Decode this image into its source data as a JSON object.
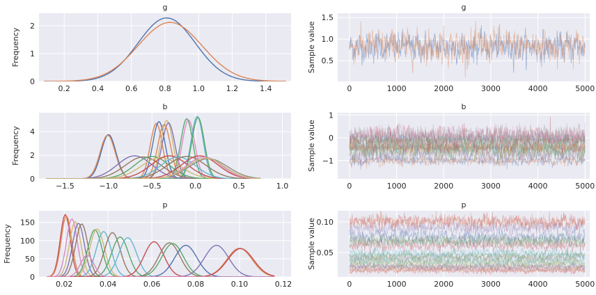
{
  "chart_data": [
    {
      "type": "line",
      "title": "g",
      "ylabel": "Frequency",
      "xlabel": "",
      "xlim": [
        0.05,
        1.55
      ],
      "ylim": [
        0,
        2.45
      ],
      "xticks": [
        0.2,
        0.4,
        0.6,
        0.8,
        1.0,
        1.2,
        1.4
      ],
      "xtick_labels": [
        "0.2",
        "0.4",
        "0.6",
        "0.8",
        "1.0",
        "1.2",
        "1.4"
      ],
      "yticks": [
        0,
        1,
        2
      ],
      "ytick_labels": [
        "0",
        "1",
        "2"
      ],
      "grid": true,
      "series": [
        {
          "mu": 0.81,
          "sigma": 0.17,
          "peak": 2.28,
          "range": [
            0.08,
            1.52
          ],
          "color": "#4c72b0"
        },
        {
          "mu": 0.83,
          "sigma": 0.19,
          "peak": 2.12,
          "range": [
            0.08,
            1.52
          ],
          "color": "#dd8452"
        }
      ]
    },
    {
      "type": "line",
      "title": "g",
      "ylabel": "Sample value",
      "xlabel": "",
      "xlim": [
        -250,
        5100
      ],
      "ylim": [
        0.02,
        1.6
      ],
      "xticks": [
        0,
        1000,
        2000,
        3000,
        4000,
        5000
      ],
      "xtick_labels": [
        "0",
        "1000",
        "2000",
        "3000",
        "4000",
        "5000"
      ],
      "yticks": [
        0.5,
        1.0,
        1.5
      ],
      "ytick_labels": [
        "0.5",
        "1.0",
        "1.5"
      ],
      "grid": true,
      "trace_range": [
        0,
        5000
      ],
      "series": [
        {
          "mean": 0.82,
          "sd": 0.17,
          "color": "#4c72b0",
          "opacity": 0.45
        },
        {
          "mean": 0.84,
          "sd": 0.19,
          "color": "#dd8452",
          "opacity": 0.45
        }
      ]
    },
    {
      "type": "line",
      "title": "b",
      "ylabel": "Frequency",
      "xlabel": "",
      "xlim": [
        -1.8,
        1.1
      ],
      "ylim": [
        0,
        5.6
      ],
      "xticks": [
        -1.5,
        -1.0,
        -0.5,
        0.0,
        0.5,
        1.0
      ],
      "xtick_labels": [
        "−1.5",
        "−1.0",
        "−0.5",
        "0.0",
        "0.5",
        "1.0"
      ],
      "yticks": [
        0,
        2,
        4
      ],
      "ytick_labels": [
        "0",
        "2",
        "4"
      ],
      "grid": true,
      "series": [
        {
          "mu": -1.0,
          "sigma": 0.085,
          "peak": 3.75,
          "range": [
            -1.72,
            0.75
          ],
          "color": "#4c72b0"
        },
        {
          "mu": -1.01,
          "sigma": 0.087,
          "peak": 3.7,
          "range": [
            -1.72,
            0.75
          ],
          "color": "#dd8452"
        },
        {
          "mu": -0.45,
          "sigma": 0.07,
          "peak": 4.7,
          "range": [
            -1.72,
            0.75
          ],
          "color": "#dd8452"
        },
        {
          "mu": -0.42,
          "sigma": 0.072,
          "peak": 4.85,
          "range": [
            -1.72,
            0.75
          ],
          "color": "#4c72b0"
        },
        {
          "mu": -0.33,
          "sigma": 0.072,
          "peak": 4.95,
          "range": [
            -1.72,
            0.75
          ],
          "color": "#ccb974"
        },
        {
          "mu": -0.31,
          "sigma": 0.075,
          "peak": 4.75,
          "range": [
            -1.72,
            0.75
          ],
          "color": "#8172b3"
        },
        {
          "mu": -0.36,
          "sigma": 0.074,
          "peak": 4.6,
          "range": [
            -1.72,
            0.75
          ],
          "color": "#dd8452"
        },
        {
          "mu": -0.1,
          "sigma": 0.07,
          "peak": 5.1,
          "range": [
            -1.72,
            0.75
          ],
          "color": "#55a868"
        },
        {
          "mu": -0.08,
          "sigma": 0.072,
          "peak": 5.0,
          "range": [
            -1.72,
            0.75
          ],
          "color": "#da8bc3"
        },
        {
          "mu": 0.02,
          "sigma": 0.07,
          "peak": 5.3,
          "range": [
            -1.72,
            0.75
          ],
          "color": "#64b5cd"
        },
        {
          "mu": 0.03,
          "sigma": 0.072,
          "peak": 5.2,
          "range": [
            -1.72,
            0.75
          ],
          "color": "#55a868"
        },
        {
          "mu": -0.7,
          "sigma": 0.2,
          "peak": 1.95,
          "range": [
            -1.72,
            0.75
          ],
          "color": "#8172b3"
        },
        {
          "mu": -0.6,
          "sigma": 0.21,
          "peak": 1.85,
          "range": [
            -1.72,
            0.75
          ],
          "color": "#937860"
        },
        {
          "mu": -0.5,
          "sigma": 0.2,
          "peak": 1.9,
          "range": [
            -1.72,
            0.75
          ],
          "color": "#55a868"
        },
        {
          "mu": -0.4,
          "sigma": 0.22,
          "peak": 1.8,
          "range": [
            -1.72,
            0.75
          ],
          "color": "#ccb974"
        },
        {
          "mu": -0.3,
          "sigma": 0.21,
          "peak": 1.95,
          "range": [
            -1.72,
            0.75
          ],
          "color": "#c44e52"
        },
        {
          "mu": -0.2,
          "sigma": 0.2,
          "peak": 1.85,
          "range": [
            -1.72,
            0.75
          ],
          "color": "#64b5cd"
        },
        {
          "mu": -0.1,
          "sigma": 0.22,
          "peak": 1.9,
          "range": [
            -1.72,
            0.75
          ],
          "color": "#937860"
        },
        {
          "mu": 0.05,
          "sigma": 0.21,
          "peak": 1.95,
          "range": [
            -1.72,
            0.75
          ],
          "color": "#c44e52"
        },
        {
          "mu": 0.1,
          "sigma": 0.2,
          "peak": 1.85,
          "range": [
            -1.72,
            0.75
          ],
          "color": "#da8bc3"
        },
        {
          "mu": 0.15,
          "sigma": 0.22,
          "peak": 1.7,
          "range": [
            -1.72,
            0.75
          ],
          "color": "#8c8c8c"
        },
        {
          "mu": 0.12,
          "sigma": 0.21,
          "peak": 1.75,
          "range": [
            -1.72,
            0.75
          ],
          "color": "#ccb974"
        }
      ]
    },
    {
      "type": "line",
      "title": "b",
      "ylabel": "Sample value",
      "xlabel": "",
      "xlim": [
        -250,
        5100
      ],
      "ylim": [
        -1.8,
        1.1
      ],
      "xticks": [
        0,
        1000,
        2000,
        3000,
        4000,
        5000
      ],
      "xtick_labels": [
        "0",
        "1000",
        "2000",
        "3000",
        "4000",
        "5000"
      ],
      "yticks": [
        -1,
        0,
        1
      ],
      "ytick_labels": [
        "−1",
        "0",
        "1"
      ],
      "grid": true,
      "trace_range": [
        0,
        5000
      ],
      "series": [
        {
          "mean": -1.0,
          "sd": 0.1,
          "color": "#4c72b0",
          "opacity": 0.35
        },
        {
          "mean": -1.01,
          "sd": 0.1,
          "color": "#dd8452",
          "opacity": 0.35
        },
        {
          "mean": -0.7,
          "sd": 0.2,
          "color": "#8172b3",
          "opacity": 0.35
        },
        {
          "mean": -0.6,
          "sd": 0.2,
          "color": "#937860",
          "opacity": 0.35
        },
        {
          "mean": -0.5,
          "sd": 0.2,
          "color": "#55a868",
          "opacity": 0.35
        },
        {
          "mean": -0.45,
          "sd": 0.08,
          "color": "#dd8452",
          "opacity": 0.35
        },
        {
          "mean": -0.42,
          "sd": 0.08,
          "color": "#4c72b0",
          "opacity": 0.35
        },
        {
          "mean": -0.4,
          "sd": 0.2,
          "color": "#ccb974",
          "opacity": 0.35
        },
        {
          "mean": -0.33,
          "sd": 0.08,
          "color": "#ccb974",
          "opacity": 0.35
        },
        {
          "mean": -0.3,
          "sd": 0.2,
          "color": "#c44e52",
          "opacity": 0.35
        },
        {
          "mean": -0.2,
          "sd": 0.2,
          "color": "#64b5cd",
          "opacity": 0.35
        },
        {
          "mean": -0.1,
          "sd": 0.08,
          "color": "#55a868",
          "opacity": 0.35
        },
        {
          "mean": -0.1,
          "sd": 0.2,
          "color": "#937860",
          "opacity": 0.35
        },
        {
          "mean": 0.02,
          "sd": 0.08,
          "color": "#64b5cd",
          "opacity": 0.35
        },
        {
          "mean": 0.05,
          "sd": 0.2,
          "color": "#c44e52",
          "opacity": 0.35
        },
        {
          "mean": 0.1,
          "sd": 0.2,
          "color": "#da8bc3",
          "opacity": 0.35
        },
        {
          "mean": 0.15,
          "sd": 0.2,
          "color": "#8c8c8c",
          "opacity": 0.35
        }
      ]
    },
    {
      "type": "line",
      "title": "p",
      "ylabel": "Frequency",
      "xlabel": "",
      "xlim": [
        0.0085,
        0.1235
      ],
      "ylim": [
        0,
        182
      ],
      "xticks": [
        0.02,
        0.04,
        0.06,
        0.08,
        0.1,
        0.12
      ],
      "xtick_labels": [
        "0.02",
        "0.04",
        "0.06",
        "0.08",
        "0.10",
        "0.12"
      ],
      "yticks": [
        0,
        50,
        100,
        150
      ],
      "ytick_labels": [
        "0",
        "50",
        "100",
        "150"
      ],
      "grid": true,
      "series": [
        {
          "mu": 0.0205,
          "sigma": 0.0023,
          "peak": 172,
          "range": [
            0.012,
            0.116
          ],
          "color": "#c44e52"
        },
        {
          "mu": 0.021,
          "sigma": 0.0024,
          "peak": 168,
          "range": [
            0.012,
            0.116
          ],
          "color": "#dd8452"
        },
        {
          "mu": 0.0235,
          "sigma": 0.0025,
          "peak": 160,
          "range": [
            0.012,
            0.116
          ],
          "color": "#da8bc3"
        },
        {
          "mu": 0.025,
          "sigma": 0.0026,
          "peak": 152,
          "range": [
            0.012,
            0.116
          ],
          "color": "#ccb974"
        },
        {
          "mu": 0.0265,
          "sigma": 0.0027,
          "peak": 148,
          "range": [
            0.012,
            0.116
          ],
          "color": "#8172b3"
        },
        {
          "mu": 0.028,
          "sigma": 0.0028,
          "peak": 146,
          "range": [
            0.012,
            0.116
          ],
          "color": "#937860"
        },
        {
          "mu": 0.034,
          "sigma": 0.0032,
          "peak": 130,
          "range": [
            0.012,
            0.116
          ],
          "color": "#55a868"
        },
        {
          "mu": 0.035,
          "sigma": 0.0033,
          "peak": 132,
          "range": [
            0.012,
            0.116
          ],
          "color": "#ccb974"
        },
        {
          "mu": 0.038,
          "sigma": 0.0034,
          "peak": 125,
          "range": [
            0.012,
            0.116
          ],
          "color": "#64b5cd"
        },
        {
          "mu": 0.042,
          "sigma": 0.0036,
          "peak": 122,
          "range": [
            0.012,
            0.116
          ],
          "color": "#937860"
        },
        {
          "mu": 0.0455,
          "sigma": 0.0038,
          "peak": 110,
          "range": [
            0.012,
            0.116
          ],
          "color": "#55a868"
        },
        {
          "mu": 0.049,
          "sigma": 0.004,
          "peak": 108,
          "range": [
            0.012,
            0.116
          ],
          "color": "#64b5cd"
        },
        {
          "mu": 0.061,
          "sigma": 0.0045,
          "peak": 97,
          "range": [
            0.012,
            0.116
          ],
          "color": "#c44e52"
        },
        {
          "mu": 0.068,
          "sigma": 0.0048,
          "peak": 94,
          "range": [
            0.012,
            0.116
          ],
          "color": "#937860"
        },
        {
          "mu": 0.0695,
          "sigma": 0.0049,
          "peak": 92,
          "range": [
            0.012,
            0.116
          ],
          "color": "#55a868"
        },
        {
          "mu": 0.0755,
          "sigma": 0.0051,
          "peak": 87,
          "range": [
            0.012,
            0.116
          ],
          "color": "#4c72b0"
        },
        {
          "mu": 0.0895,
          "sigma": 0.0055,
          "peak": 87,
          "range": [
            0.012,
            0.116
          ],
          "color": "#8172b3"
        },
        {
          "mu": 0.1,
          "sigma": 0.0058,
          "peak": 79,
          "range": [
            0.012,
            0.116
          ],
          "color": "#dd8452"
        },
        {
          "mu": 0.1005,
          "sigma": 0.0059,
          "peak": 78,
          "range": [
            0.012,
            0.116
          ],
          "color": "#c44e52"
        },
        {
          "mu": 0.0305,
          "sigma": 0.003,
          "peak": 60,
          "range": [
            0.012,
            0.116
          ],
          "color": "#da8bc3"
        }
      ]
    },
    {
      "type": "line",
      "title": "p",
      "ylabel": "Sample value",
      "xlabel": "",
      "xlim": [
        -250,
        5100
      ],
      "ylim": [
        0.01,
        0.118
      ],
      "xticks": [
        0,
        1000,
        2000,
        3000,
        4000,
        5000
      ],
      "xtick_labels": [
        "0",
        "1000",
        "2000",
        "3000",
        "4000",
        "5000"
      ],
      "yticks": [
        0.05,
        0.1
      ],
      "ytick_labels": [
        "0.05",
        "0.10"
      ],
      "grid": true,
      "trace_range": [
        0,
        5000
      ],
      "series": [
        {
          "mean": 0.0205,
          "sd": 0.0023,
          "color": "#c44e52",
          "opacity": 0.35
        },
        {
          "mean": 0.021,
          "sd": 0.0024,
          "color": "#dd8452",
          "opacity": 0.35
        },
        {
          "mean": 0.0235,
          "sd": 0.0025,
          "color": "#da8bc3",
          "opacity": 0.35
        },
        {
          "mean": 0.025,
          "sd": 0.0026,
          "color": "#ccb974",
          "opacity": 0.35
        },
        {
          "mean": 0.0265,
          "sd": 0.0027,
          "color": "#8172b3",
          "opacity": 0.35
        },
        {
          "mean": 0.028,
          "sd": 0.0028,
          "color": "#937860",
          "opacity": 0.35
        },
        {
          "mean": 0.034,
          "sd": 0.0032,
          "color": "#55a868",
          "opacity": 0.35
        },
        {
          "mean": 0.035,
          "sd": 0.0033,
          "color": "#ccb974",
          "opacity": 0.35
        },
        {
          "mean": 0.038,
          "sd": 0.0034,
          "color": "#64b5cd",
          "opacity": 0.35
        },
        {
          "mean": 0.042,
          "sd": 0.0036,
          "color": "#937860",
          "opacity": 0.35
        },
        {
          "mean": 0.0455,
          "sd": 0.0038,
          "color": "#55a868",
          "opacity": 0.35
        },
        {
          "mean": 0.049,
          "sd": 0.004,
          "color": "#64b5cd",
          "opacity": 0.35
        },
        {
          "mean": 0.061,
          "sd": 0.0045,
          "color": "#c44e52",
          "opacity": 0.35
        },
        {
          "mean": 0.068,
          "sd": 0.0048,
          "color": "#937860",
          "opacity": 0.35
        },
        {
          "mean": 0.0695,
          "sd": 0.0049,
          "color": "#55a868",
          "opacity": 0.35
        },
        {
          "mean": 0.0755,
          "sd": 0.0051,
          "color": "#4c72b0",
          "opacity": 0.35
        },
        {
          "mean": 0.0895,
          "sd": 0.0055,
          "color": "#8172b3",
          "opacity": 0.35
        },
        {
          "mean": 0.1,
          "sd": 0.0058,
          "color": "#dd8452",
          "opacity": 0.35
        },
        {
          "mean": 0.1005,
          "sd": 0.0059,
          "color": "#c44e52",
          "opacity": 0.35
        }
      ]
    }
  ]
}
